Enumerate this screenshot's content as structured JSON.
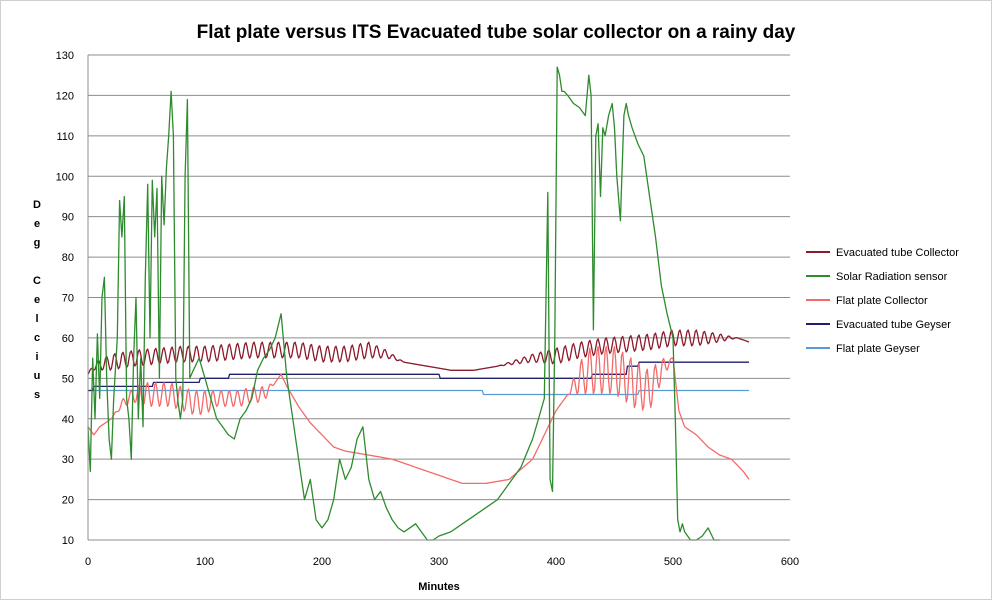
{
  "chart_data": {
    "type": "line",
    "title": "Flat plate versus ITS Evacuated tube solar collector on a rainy day",
    "xlabel": "Minutes",
    "ylabel": "Deg Celcius",
    "xlim": [
      0,
      600
    ],
    "ylim": [
      10,
      130
    ],
    "xticks": [
      0,
      100,
      200,
      300,
      400,
      500,
      600
    ],
    "yticks": [
      10,
      20,
      30,
      40,
      50,
      60,
      70,
      80,
      90,
      100,
      110,
      120,
      130
    ],
    "grid": "horizontal",
    "legend_position": "right",
    "series": [
      {
        "name": "Evacuated tube Collector",
        "color": "#8b1a2b",
        "x": [
          0,
          5,
          20,
          40,
          60,
          80,
          100,
          120,
          140,
          160,
          180,
          200,
          220,
          240,
          255,
          270,
          290,
          310,
          330,
          350,
          380,
          400,
          420,
          440,
          460,
          480,
          500,
          520,
          540,
          555,
          565
        ],
        "y": [
          51,
          53,
          54,
          55,
          55.5,
          56,
          56,
          56.5,
          57,
          57,
          57,
          56,
          56,
          57,
          56,
          54,
          53,
          52,
          52,
          53,
          55,
          55.5,
          57,
          58,
          58.5,
          59,
          60,
          60,
          60,
          60,
          59
        ],
        "osc_amp": [
          0,
          1,
          2,
          2,
          2,
          2,
          2,
          2,
          2,
          2,
          2,
          2,
          2,
          2,
          1,
          0,
          0,
          0,
          0,
          0,
          1,
          2,
          2,
          2,
          2,
          2,
          2,
          2,
          1,
          0,
          0
        ]
      },
      {
        "name": "Solar Radiation  sensor",
        "color": "#2e8b2e",
        "x": [
          0,
          2,
          4,
          6,
          8,
          10,
          12,
          14,
          16,
          18,
          20,
          22,
          25,
          27,
          29,
          31,
          33,
          35,
          37,
          39,
          41,
          43,
          45,
          47,
          49,
          51,
          53,
          55,
          57,
          59,
          61,
          63,
          65,
          67,
          69,
          71,
          73,
          75,
          77,
          79,
          81,
          83,
          85,
          87,
          90,
          95,
          100,
          105,
          110,
          115,
          120,
          125,
          130,
          135,
          140,
          145,
          150,
          155,
          160,
          165,
          170,
          175,
          180,
          185,
          190,
          195,
          200,
          205,
          210,
          215,
          220,
          225,
          230,
          235,
          240,
          245,
          250,
          255,
          260,
          265,
          270,
          275,
          280,
          285,
          290,
          295,
          300,
          310,
          320,
          330,
          340,
          350,
          360,
          370,
          380,
          385,
          390,
          393,
          395,
          397,
          399,
          401,
          403,
          405,
          407,
          410,
          415,
          420,
          425,
          428,
          430,
          432,
          434,
          436,
          438,
          440,
          442,
          445,
          448,
          450,
          452,
          455,
          458,
          460,
          462,
          465,
          470,
          475,
          480,
          485,
          490,
          495,
          500,
          502,
          504,
          506,
          508,
          510,
          515,
          520,
          525,
          530,
          535,
          540
        ],
        "y": [
          38,
          27,
          55,
          40,
          61,
          45,
          70,
          75,
          50,
          35,
          30,
          45,
          60,
          94,
          85,
          95,
          45,
          40,
          30,
          55,
          70,
          40,
          55,
          38,
          75,
          98,
          60,
          99,
          85,
          97,
          50,
          100,
          88,
          102,
          110,
          121,
          110,
          50,
          44,
          40,
          45,
          100,
          119,
          50,
          52,
          55,
          50,
          45,
          40,
          38,
          36,
          35,
          40,
          42,
          45,
          52,
          55,
          57,
          60,
          66,
          50,
          40,
          30,
          20,
          25,
          15,
          13,
          15,
          20,
          30,
          25,
          28,
          35,
          38,
          25,
          20,
          22,
          18,
          15,
          13,
          12,
          13,
          14,
          12,
          10,
          10,
          11,
          12,
          14,
          16,
          18,
          20,
          24,
          28,
          35,
          40,
          45,
          96,
          25,
          22,
          60,
          127,
          125,
          121,
          121,
          120,
          118,
          117,
          115,
          125,
          120,
          62,
          110,
          113,
          95,
          112,
          110,
          115,
          118,
          112,
          100,
          89,
          115,
          118,
          115,
          112,
          108,
          105,
          95,
          85,
          73,
          66,
          60,
          40,
          15,
          12,
          14,
          12,
          10,
          10,
          11,
          13,
          10,
          10
        ]
      },
      {
        "name": "Flat plate Collector",
        "color": "#f26b6b",
        "x": [
          0,
          5,
          10,
          20,
          30,
          40,
          50,
          60,
          70,
          80,
          90,
          100,
          110,
          120,
          130,
          140,
          150,
          160,
          165,
          170,
          180,
          190,
          200,
          210,
          220,
          240,
          260,
          280,
          300,
          320,
          340,
          360,
          380,
          390,
          400,
          410,
          420,
          430,
          440,
          450,
          460,
          470,
          480,
          490,
          500,
          505,
          510,
          520,
          530,
          540,
          550,
          560,
          565
        ],
        "y": [
          38,
          36,
          38,
          40,
          44,
          46,
          46,
          46,
          46,
          45,
          44,
          44,
          45,
          45,
          45,
          46,
          46,
          49,
          51,
          48,
          43,
          39,
          36,
          33,
          32,
          31,
          30,
          28,
          26,
          24,
          24,
          25,
          30,
          36,
          42,
          46,
          50,
          52,
          52,
          52,
          50,
          48,
          47,
          52,
          55,
          42,
          38,
          36,
          33,
          31,
          30,
          27,
          25
        ],
        "osc_amp": [
          0,
          0,
          0,
          0,
          1,
          2,
          3,
          3,
          3,
          3,
          3,
          3,
          2,
          2,
          2,
          2,
          2,
          0,
          0,
          0,
          0,
          0,
          0,
          0,
          0,
          0,
          0,
          0,
          0,
          0,
          0,
          0,
          0,
          0,
          0,
          0,
          4,
          6,
          6,
          6,
          6,
          6,
          5,
          3,
          0,
          0,
          0,
          0,
          0,
          0,
          0,
          0,
          0
        ]
      },
      {
        "name": "Evacuated tube Geyser",
        "color": "#1f1f6e",
        "x": [
          0,
          4,
          5,
          9,
          10,
          55,
          56,
          95,
          96,
          120,
          121,
          300,
          301,
          430,
          431,
          460,
          461,
          470,
          471,
          565
        ],
        "y": [
          47,
          47,
          48,
          48,
          48,
          48,
          49,
          49,
          50,
          50,
          51,
          51,
          50,
          50,
          51,
          51,
          53,
          53,
          54,
          54
        ]
      },
      {
        "name": "Flat plate Geyser",
        "color": "#5b9bd5",
        "x": [
          0,
          337,
          338,
          470,
          471,
          565
        ],
        "y": [
          47,
          47,
          46,
          46,
          47,
          47
        ]
      }
    ]
  }
}
